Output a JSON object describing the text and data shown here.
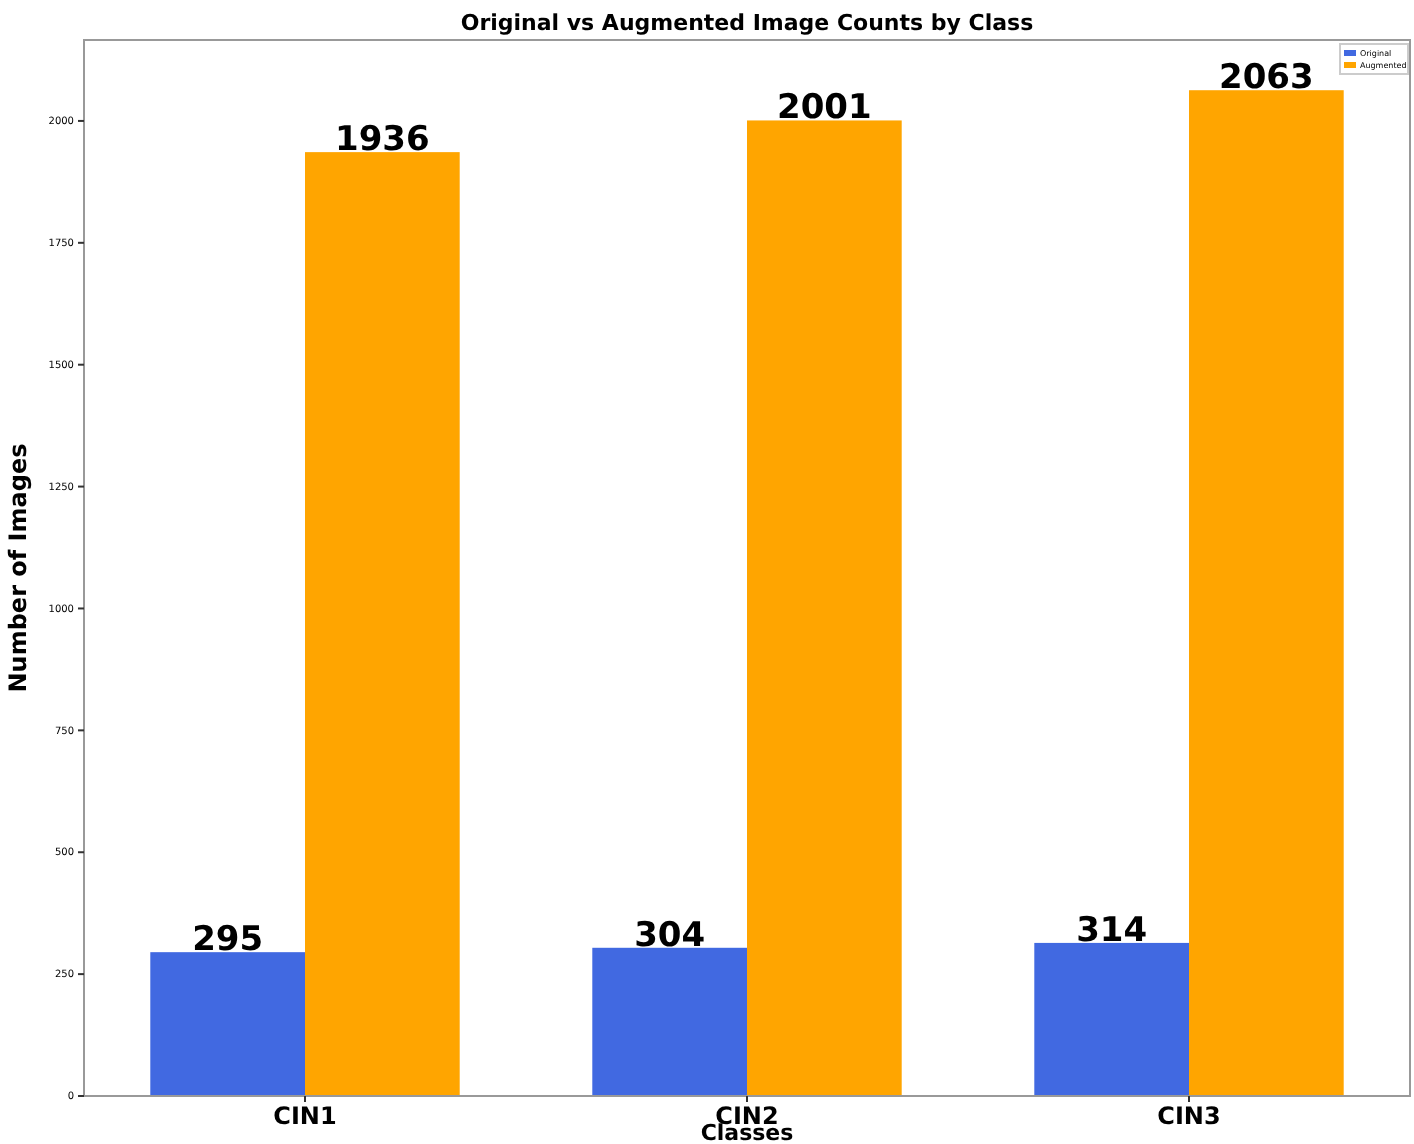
{
  "chart_data": {
    "type": "bar",
    "title": "Original vs Augmented Image Counts by Class",
    "xlabel": "Classes",
    "ylabel": "Number of Images",
    "categories": [
      "CIN1",
      "CIN2",
      "CIN3"
    ],
    "series": [
      {
        "name": "Original",
        "color": "#4169e1",
        "values": [
          295,
          304,
          314
        ]
      },
      {
        "name": "Augmented",
        "color": "#ffa500",
        "values": [
          1936,
          2001,
          2063
        ]
      }
    ],
    "ylim": [
      0,
      2166
    ],
    "yticks": [
      0,
      250,
      500,
      750,
      1000,
      1250,
      1500,
      1750,
      2000
    ],
    "data_labels": true,
    "legend": "top right"
  }
}
